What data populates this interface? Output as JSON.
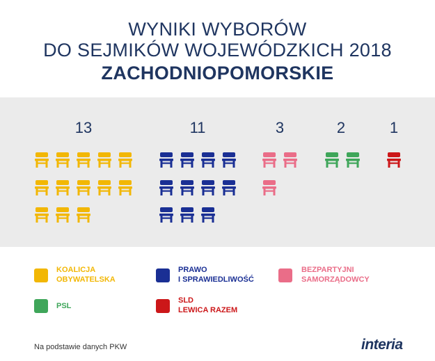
{
  "header": {
    "line1": "WYNIKI WYBORÓW",
    "line2": "DO SEJMIKÓW WOJEWÓDZKICH 2018",
    "line3": "ZACHODNIOPOMORSKIE"
  },
  "chart_data": {
    "type": "pictogram",
    "categories": [
      "KOALICJA OBYWATELSKA",
      "PRAWO I SPRAWIEDLIWOŚĆ",
      "BEZPARTYJNI SAMORZĄDOWCY",
      "PSL",
      "SLD LEWICA RAZEM"
    ],
    "values": [
      13,
      11,
      3,
      2,
      1
    ],
    "labels": [
      "13",
      "11",
      "3",
      "2",
      "1"
    ],
    "colors": [
      "#f2b705",
      "#1a2f94",
      "#ea6d88",
      "#3fa65a",
      "#cc1719"
    ],
    "icon": "chair-icon"
  },
  "legend": [
    {
      "line1": "KOALICJA",
      "line2": "OBYWATELSKA",
      "color": "#f2b705",
      "text_color": "#f2b705"
    },
    {
      "line1": "PRAWO",
      "line2": "I SPRAWIEDLIWOŚĆ",
      "color": "#1a2f94",
      "text_color": "#1a2f94"
    },
    {
      "line1": "BEZPARTYJNI",
      "line2": "SAMORZĄDOWCY",
      "color": "#ea6d88",
      "text_color": "#ea6d88"
    },
    {
      "line1": "PSL",
      "line2": "",
      "color": "#3fa65a",
      "text_color": "#3fa65a"
    },
    {
      "line1": "SLD",
      "line2": "LEWICA RAZEM",
      "color": "#cc1719",
      "text_color": "#cc1719"
    }
  ],
  "footer": {
    "source": "Na podstawie danych PKW",
    "logo": "interia"
  }
}
